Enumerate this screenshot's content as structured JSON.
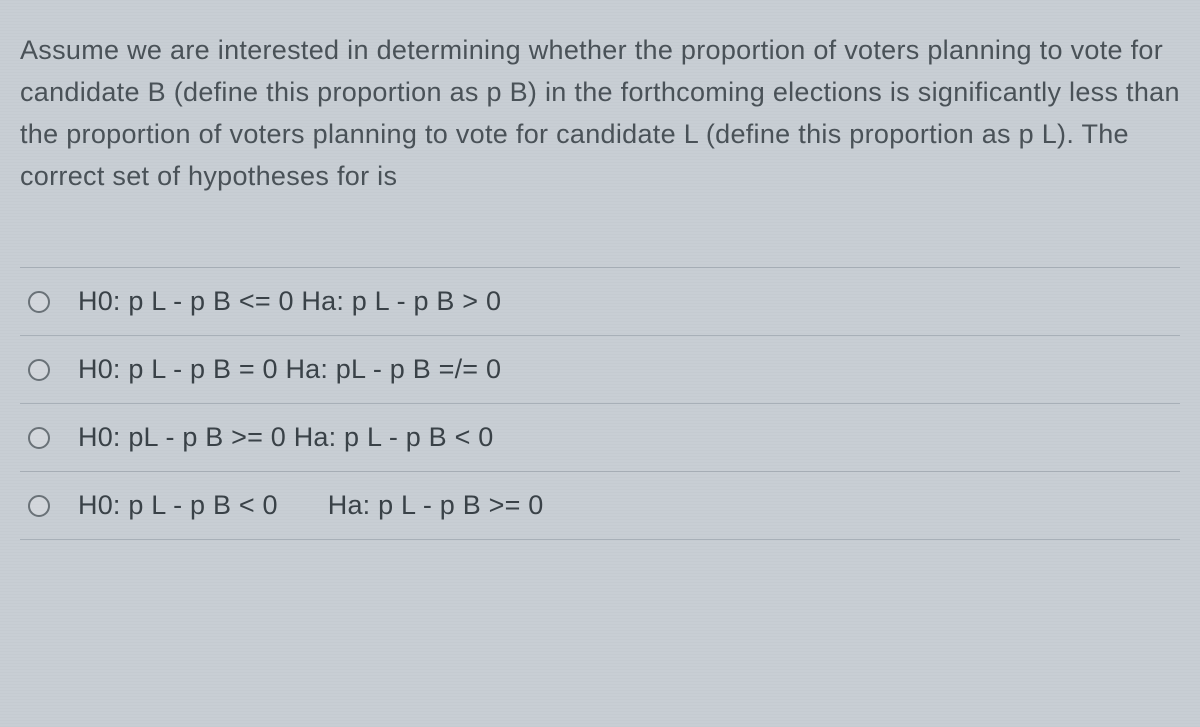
{
  "question": {
    "text": "Assume we are interested in determining whether the proportion of voters planning to vote for candidate B (define this proportion as p B) in the forthcoming elections is significantly less than the proportion of voters planning to vote for candidate L (define this proportion as p L).  The correct set of hypotheses for is"
  },
  "options": [
    {
      "label": "H0: p L - p B <= 0 Ha: p L - p B > 0"
    },
    {
      "label": "H0: p L - p B = 0 Ha: pL - p B =/= 0"
    },
    {
      "label": "H0: pL - p B >= 0 Ha: p L - p B < 0"
    },
    {
      "label_part1": "H0: p L - p B < 0",
      "label_part2": "Ha: p L - p B >= 0"
    }
  ],
  "styling": {
    "background_color": "#c8ced4",
    "text_color": "#4a5258",
    "option_text_color": "#3a4248",
    "divider_color": "#a8b0b8",
    "radio_border_color": "#6a7278",
    "question_fontsize": 27,
    "option_fontsize": 27,
    "line_height": 1.55
  }
}
